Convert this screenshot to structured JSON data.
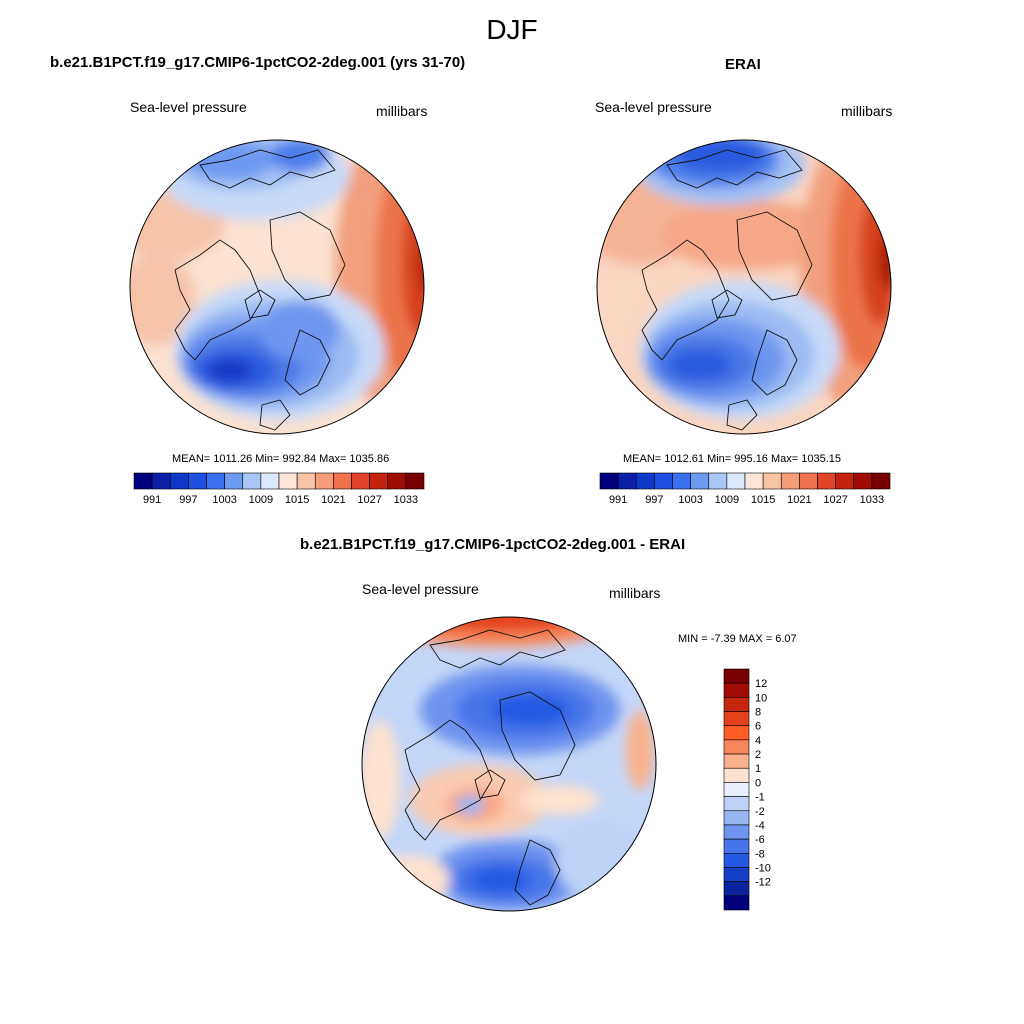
{
  "header": {
    "title": "DJF"
  },
  "panel_left": {
    "title": "b.e21.B1PCT.f19_g17.CMIP6-1pctCO2-2deg.001 (yrs 31-70)",
    "variable": "Sea-level pressure",
    "units": "millibars",
    "stats": "MEAN= 1011.26  Min= 992.84  Max= 1035.86"
  },
  "panel_right": {
    "title": "ERAI",
    "variable": "Sea-level pressure",
    "units": "millibars",
    "stats": "MEAN= 1012.61  Min= 995.16  Max= 1035.15"
  },
  "panel_diff": {
    "title": "b.e21.B1PCT.f19_g17.CMIP6-1pctCO2-2deg.001 - ERAI",
    "variable": "Sea-level pressure",
    "units": "millibars",
    "stats": "MIN =  -7.39 MAX =   6.07"
  },
  "colorbar_abs": {
    "labels": [
      "991",
      "997",
      "1003",
      "1009",
      "1015",
      "1021",
      "1027",
      "1033"
    ],
    "colors": [
      "#00007f",
      "#0a1fa6",
      "#0d38c8",
      "#2050e0",
      "#3a6ff0",
      "#6e9bf2",
      "#a9c6f7",
      "#dce8fb",
      "#fde6d8",
      "#f9c4a6",
      "#f59c78",
      "#f0714e",
      "#e0442a",
      "#c3220f",
      "#9e0c04",
      "#780000"
    ]
  },
  "colorbar_diff": {
    "labels": [
      "12",
      "10",
      "8",
      "6",
      "4",
      "2",
      "1",
      "0",
      "-1",
      "-2",
      "-4",
      "-6",
      "-8",
      "-10",
      "-12"
    ],
    "colors": [
      "#780000",
      "#a10d05",
      "#c52610",
      "#e4421c",
      "#ff5d25",
      "#f7875a",
      "#f9b28c",
      "#fde2d0",
      "#e8eefc",
      "#bed2f7",
      "#96b5f3",
      "#6e94ee",
      "#4776ea",
      "#245ae3",
      "#1440c8",
      "#0a229e",
      "#00007f"
    ]
  },
  "chart_data": [
    {
      "type": "map",
      "title": "b.e21.B1PCT.f19_g17.CMIP6-1pctCO2-2deg.001 (yrs 31-70)",
      "variable": "Sea-level pressure",
      "units": "millibars",
      "mean": 1011.26,
      "min": 992.84,
      "max": 1035.86,
      "levels": [
        991,
        994,
        997,
        1000,
        1003,
        1006,
        1009,
        1012,
        1015,
        1018,
        1021,
        1024,
        1027,
        1030,
        1033
      ]
    },
    {
      "type": "map",
      "title": "ERAI",
      "variable": "Sea-level pressure",
      "units": "millibars",
      "mean": 1012.61,
      "min": 995.16,
      "max": 1035.15,
      "levels": [
        991,
        994,
        997,
        1000,
        1003,
        1006,
        1009,
        1012,
        1015,
        1018,
        1021,
        1024,
        1027,
        1030,
        1033
      ]
    },
    {
      "type": "map",
      "title": "b.e21.B1PCT.f19_g17.CMIP6-1pctCO2-2deg.001 - ERAI",
      "variable": "Sea-level pressure",
      "units": "millibars",
      "min": -7.39,
      "max": 6.07,
      "levels": [
        -12,
        -10,
        -8,
        -6,
        -4,
        -2,
        -1,
        0,
        1,
        2,
        4,
        6,
        8,
        10,
        12
      ]
    }
  ]
}
